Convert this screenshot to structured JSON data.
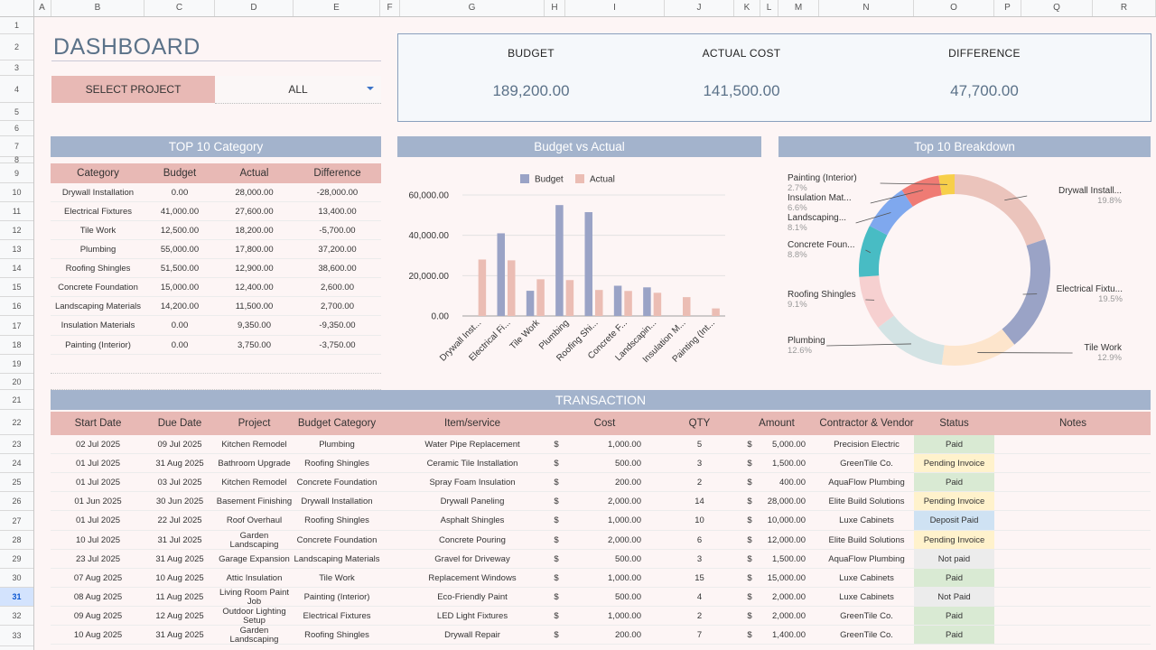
{
  "columns": [
    "A",
    "B",
    "C",
    "D",
    "E",
    "F",
    "G",
    "H",
    "I",
    "J",
    "K",
    "L",
    "M",
    "N",
    "O",
    "P",
    "Q",
    "R"
  ],
  "rows": [
    "1",
    "2",
    "3",
    "4",
    "5",
    "6",
    "7",
    "8",
    "9",
    "10",
    "11",
    "12",
    "13",
    "14",
    "15",
    "16",
    "17",
    "18",
    "19",
    "20",
    "21",
    "22",
    "23",
    "24",
    "25",
    "26",
    "27",
    "28",
    "29",
    "30",
    "31",
    "32",
    "33"
  ],
  "dashboard": {
    "title": "DASHBOARD",
    "select_label": "SELECT PROJECT",
    "select_value": "ALL"
  },
  "kpis": [
    {
      "label": "BUDGET",
      "value": "189,200.00"
    },
    {
      "label": "ACTUAL COST",
      "value": "141,500.00"
    },
    {
      "label": "DIFFERENCE",
      "value": "47,700.00"
    }
  ],
  "sections": {
    "top10": "TOP 10 Category",
    "budget_vs_actual": "Budget vs Actual",
    "breakdown": "Top 10 Breakdown",
    "transaction": "TRANSACTION"
  },
  "category_table": {
    "headers": [
      "Category",
      "Budget",
      "Actual",
      "Difference"
    ],
    "rows": [
      [
        "Drywall Installation",
        "0.00",
        "28,000.00",
        "-28,000.00"
      ],
      [
        "Electrical Fixtures",
        "41,000.00",
        "27,600.00",
        "13,400.00"
      ],
      [
        "Tile Work",
        "12,500.00",
        "18,200.00",
        "-5,700.00"
      ],
      [
        "Plumbing",
        "55,000.00",
        "17,800.00",
        "37,200.00"
      ],
      [
        "Roofing Shingles",
        "51,500.00",
        "12,900.00",
        "38,600.00"
      ],
      [
        "Concrete Foundation",
        "15,000.00",
        "12,400.00",
        "2,600.00"
      ],
      [
        "Landscaping Materials",
        "14,200.00",
        "11,500.00",
        "2,700.00"
      ],
      [
        "Insulation Materials",
        "0.00",
        "9,350.00",
        "-9,350.00"
      ],
      [
        "Painting (Interior)",
        "0.00",
        "3,750.00",
        "-3,750.00"
      ]
    ]
  },
  "chart_data": [
    {
      "type": "bar",
      "title": "",
      "legend": [
        "Budget",
        "Actual"
      ],
      "legend_position": "top",
      "colors": {
        "Budget": "#9aa3c6",
        "Actual": "#ebbdb4"
      },
      "categories": [
        "Drywall Inst...",
        "Electrical Fi...",
        "Tile Work",
        "Plumbing",
        "Roofing Shi...",
        "Concrete F...",
        "Landscapin...",
        "Insulation M...",
        "Painting (Int..."
      ],
      "series": [
        {
          "name": "Budget",
          "values": [
            0,
            41000,
            12500,
            55000,
            51500,
            15000,
            14200,
            0,
            0
          ]
        },
        {
          "name": "Actual",
          "values": [
            28000,
            27600,
            18200,
            17800,
            12900,
            12400,
            11500,
            9350,
            3750
          ]
        }
      ],
      "yticks": [
        "0.00",
        "20,000.00",
        "40,000.00",
        "60,000.00"
      ],
      "ylim": [
        0,
        60000
      ],
      "grid": true
    },
    {
      "type": "pie",
      "style": "donut",
      "slices": [
        {
          "label": "Drywall Installation",
          "short": "Drywall Install...",
          "value": 19.8,
          "pct": "19.8%",
          "color": "#ebc4bc"
        },
        {
          "label": "Electrical Fixtures",
          "short": "Electrical Fixtu...",
          "value": 19.5,
          "pct": "19.5%",
          "color": "#9aa3c6"
        },
        {
          "label": "Tile Work",
          "short": "Tile Work",
          "value": 12.9,
          "pct": "12.9%",
          "color": "#fde5cc"
        },
        {
          "label": "Plumbing",
          "short": "Plumbing",
          "value": 12.6,
          "pct": "12.6%",
          "color": "#d3e3e4"
        },
        {
          "label": "Roofing Shingles",
          "short": "Roofing Shingles",
          "value": 9.1,
          "pct": "9.1%",
          "color": "#f6d0d0"
        },
        {
          "label": "Concrete Foundation",
          "short": "Concrete Foun...",
          "value": 8.8,
          "pct": "8.8%",
          "color": "#48bcc4"
        },
        {
          "label": "Landscaping Materials",
          "short": "Landscaping...",
          "value": 8.1,
          "pct": "8.1%",
          "color": "#7fa8ee"
        },
        {
          "label": "Insulation Materials",
          "short": "Insulation Mat...",
          "value": 6.6,
          "pct": "6.6%",
          "color": "#ef7b74"
        },
        {
          "label": "Painting (Interior)",
          "short": "Painting (Interior)",
          "value": 2.7,
          "pct": "2.7%",
          "color": "#f7cf4a"
        }
      ]
    }
  ],
  "transactions": {
    "headers": [
      "Start Date",
      "Due Date",
      "Project",
      "Budget Category",
      "Item/service",
      "Cost",
      "QTY",
      "Amount",
      "Contractor & Vendor",
      "Status",
      "Notes"
    ],
    "rows": [
      {
        "start": "02 Jul 2025",
        "due": "09 Jul 2025",
        "project": "Kitchen Remodel",
        "category": "Plumbing",
        "item": "Water Pipe Replacement",
        "cost": "1,000.00",
        "qty": "5",
        "amount": "5,000.00",
        "vendor": "Precision Electric",
        "status": "Paid"
      },
      {
        "start": "01 Jul 2025",
        "due": "31 Aug 2025",
        "project": "Bathroom Upgrade",
        "category": "Roofing Shingles",
        "item": "Ceramic Tile Installation",
        "cost": "500.00",
        "qty": "3",
        "amount": "1,500.00",
        "vendor": "GreenTile Co.",
        "status": "Pending Invoice"
      },
      {
        "start": "01 Jul 2025",
        "due": "03 Jul 2025",
        "project": "Kitchen Remodel",
        "category": "Concrete Foundation",
        "item": "Spray Foam Insulation",
        "cost": "200.00",
        "qty": "2",
        "amount": "400.00",
        "vendor": "AquaFlow Plumbing",
        "status": "Paid"
      },
      {
        "start": "01 Jun 2025",
        "due": "30 Jun 2025",
        "project": "Basement Finishing",
        "category": "Drywall Installation",
        "item": "Drywall Paneling",
        "cost": "2,000.00",
        "qty": "14",
        "amount": "28,000.00",
        "vendor": "Elite Build Solutions",
        "status": "Pending Invoice"
      },
      {
        "start": "01 Jul 2025",
        "due": "22 Jul 2025",
        "project": "Roof Overhaul",
        "category": "Roofing Shingles",
        "item": "Asphalt Shingles",
        "cost": "1,000.00",
        "qty": "10",
        "amount": "10,000.00",
        "vendor": "Luxe Cabinets",
        "status": "Deposit Paid"
      },
      {
        "start": "10 Jul 2025",
        "due": "31 Jul 2025",
        "project": "Garden Landscaping",
        "category": "Concrete Foundation",
        "item": "Concrete Pouring",
        "cost": "2,000.00",
        "qty": "6",
        "amount": "12,000.00",
        "vendor": "Elite Build Solutions",
        "status": "Pending Invoice"
      },
      {
        "start": "23 Jul 2025",
        "due": "31 Aug 2025",
        "project": "Garage Expansion",
        "category": "Landscaping Materials",
        "item": "Gravel for Driveway",
        "cost": "500.00",
        "qty": "3",
        "amount": "1,500.00",
        "vendor": "AquaFlow Plumbing",
        "status": "Not paid"
      },
      {
        "start": "07 Aug 2025",
        "due": "10 Aug 2025",
        "project": "Attic Insulation",
        "category": "Tile Work",
        "item": "Replacement Windows",
        "cost": "1,000.00",
        "qty": "15",
        "amount": "15,000.00",
        "vendor": "Luxe Cabinets",
        "status": "Paid"
      },
      {
        "start": "08 Aug 2025",
        "due": "11 Aug 2025",
        "project": "Living Room Paint Job",
        "category": "Painting (Interior)",
        "item": "Eco-Friendly Paint",
        "cost": "500.00",
        "qty": "4",
        "amount": "2,000.00",
        "vendor": "Luxe Cabinets",
        "status": "Not Paid"
      },
      {
        "start": "09 Aug 2025",
        "due": "12 Aug 2025",
        "project": "Outdoor Lighting Setup",
        "category": "Electrical Fixtures",
        "item": "LED Light Fixtures",
        "cost": "1,000.00",
        "qty": "2",
        "amount": "2,000.00",
        "vendor": "GreenTile Co.",
        "status": "Paid"
      },
      {
        "start": "10 Aug 2025",
        "due": "31 Aug 2025",
        "project": "Garden Landscaping",
        "category": "Roofing Shingles",
        "item": "Drywall Repair",
        "cost": "200.00",
        "qty": "7",
        "amount": "1,400.00",
        "vendor": "GreenTile Co.",
        "status": "Paid"
      }
    ],
    "currency_symbol": "$",
    "status_colors": {
      "Paid": "#d9ead3",
      "Pending Invoice": "#fff2cc",
      "Deposit Paid": "#cfe2f3",
      "Not paid": "#ececec",
      "Not Paid": "#ececec"
    }
  }
}
